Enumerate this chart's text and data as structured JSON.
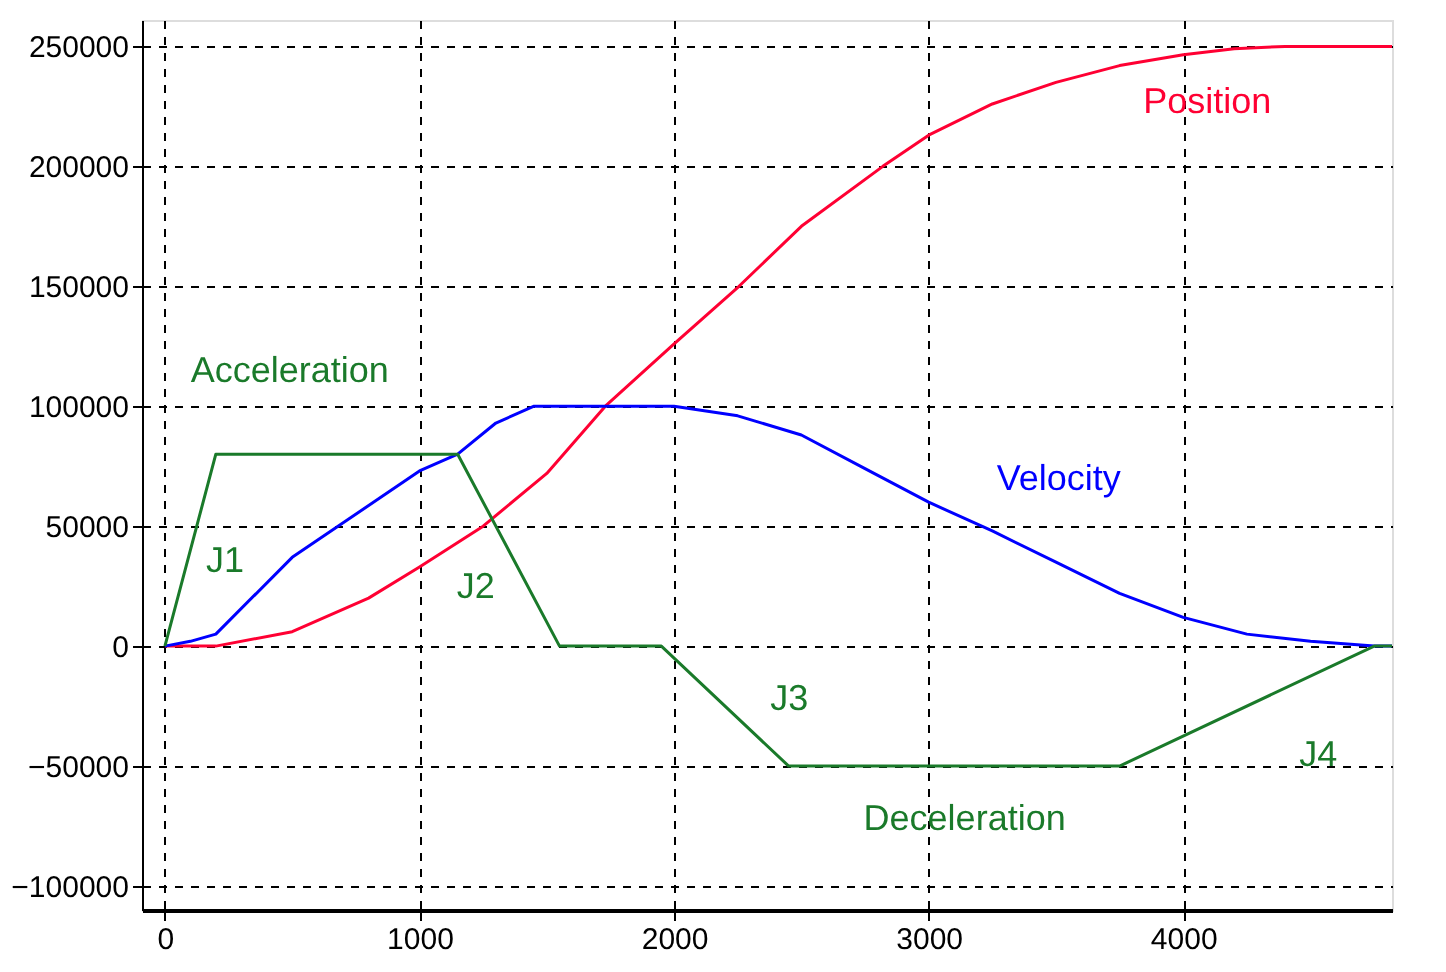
{
  "chart_data": {
    "type": "line",
    "xlim": [
      -90,
      4820
    ],
    "ylim": [
      -110000,
      261000
    ],
    "xticks": [
      0,
      1000,
      2000,
      3000,
      4000
    ],
    "yticks": [
      -100000,
      -50000,
      0,
      50000,
      100000,
      150000,
      200000,
      250000
    ],
    "grid": true,
    "marker": "none",
    "line_style": "solid",
    "series": [
      {
        "name": "Position",
        "color": "#ff0033",
        "x": [
          0,
          200,
          500,
          800,
          1000,
          1250,
          1500,
          1730,
          2000,
          2255,
          2500,
          2820,
          3000,
          3250,
          3500,
          3750,
          4000,
          4200,
          4400,
          4820
        ],
        "values": [
          0,
          0,
          6000,
          20000,
          33000,
          50000,
          72000,
          100000,
          126000,
          150000,
          175000,
          200000,
          213000,
          226000,
          235000,
          242000,
          246500,
          249000,
          250000,
          250000
        ]
      },
      {
        "name": "Velocity",
        "color": "#0000ff",
        "x": [
          0,
          100,
          200,
          500,
          1000,
          1150,
          1300,
          1450,
          2000,
          2250,
          2500,
          2750,
          3000,
          3250,
          3500,
          3750,
          4000,
          4250,
          4500,
          4750,
          4820
        ],
        "values": [
          0,
          2000,
          5000,
          37000,
          73000,
          80000,
          93000,
          100000,
          100000,
          96000,
          88000,
          74000,
          60000,
          48000,
          35000,
          22000,
          12000,
          5000,
          2000,
          0,
          0
        ]
      },
      {
        "name": "Acceleration",
        "color": "#1a7a2a",
        "x": [
          0,
          200,
          1150,
          1550,
          1950,
          2450,
          3750,
          4750,
          4820
        ],
        "values": [
          0,
          80000,
          80000,
          0,
          0,
          -50000,
          -50000,
          0,
          0
        ]
      }
    ],
    "annotations": [
      "J1",
      "J2",
      "J3",
      "J4",
      "Deceleration"
    ]
  }
}
